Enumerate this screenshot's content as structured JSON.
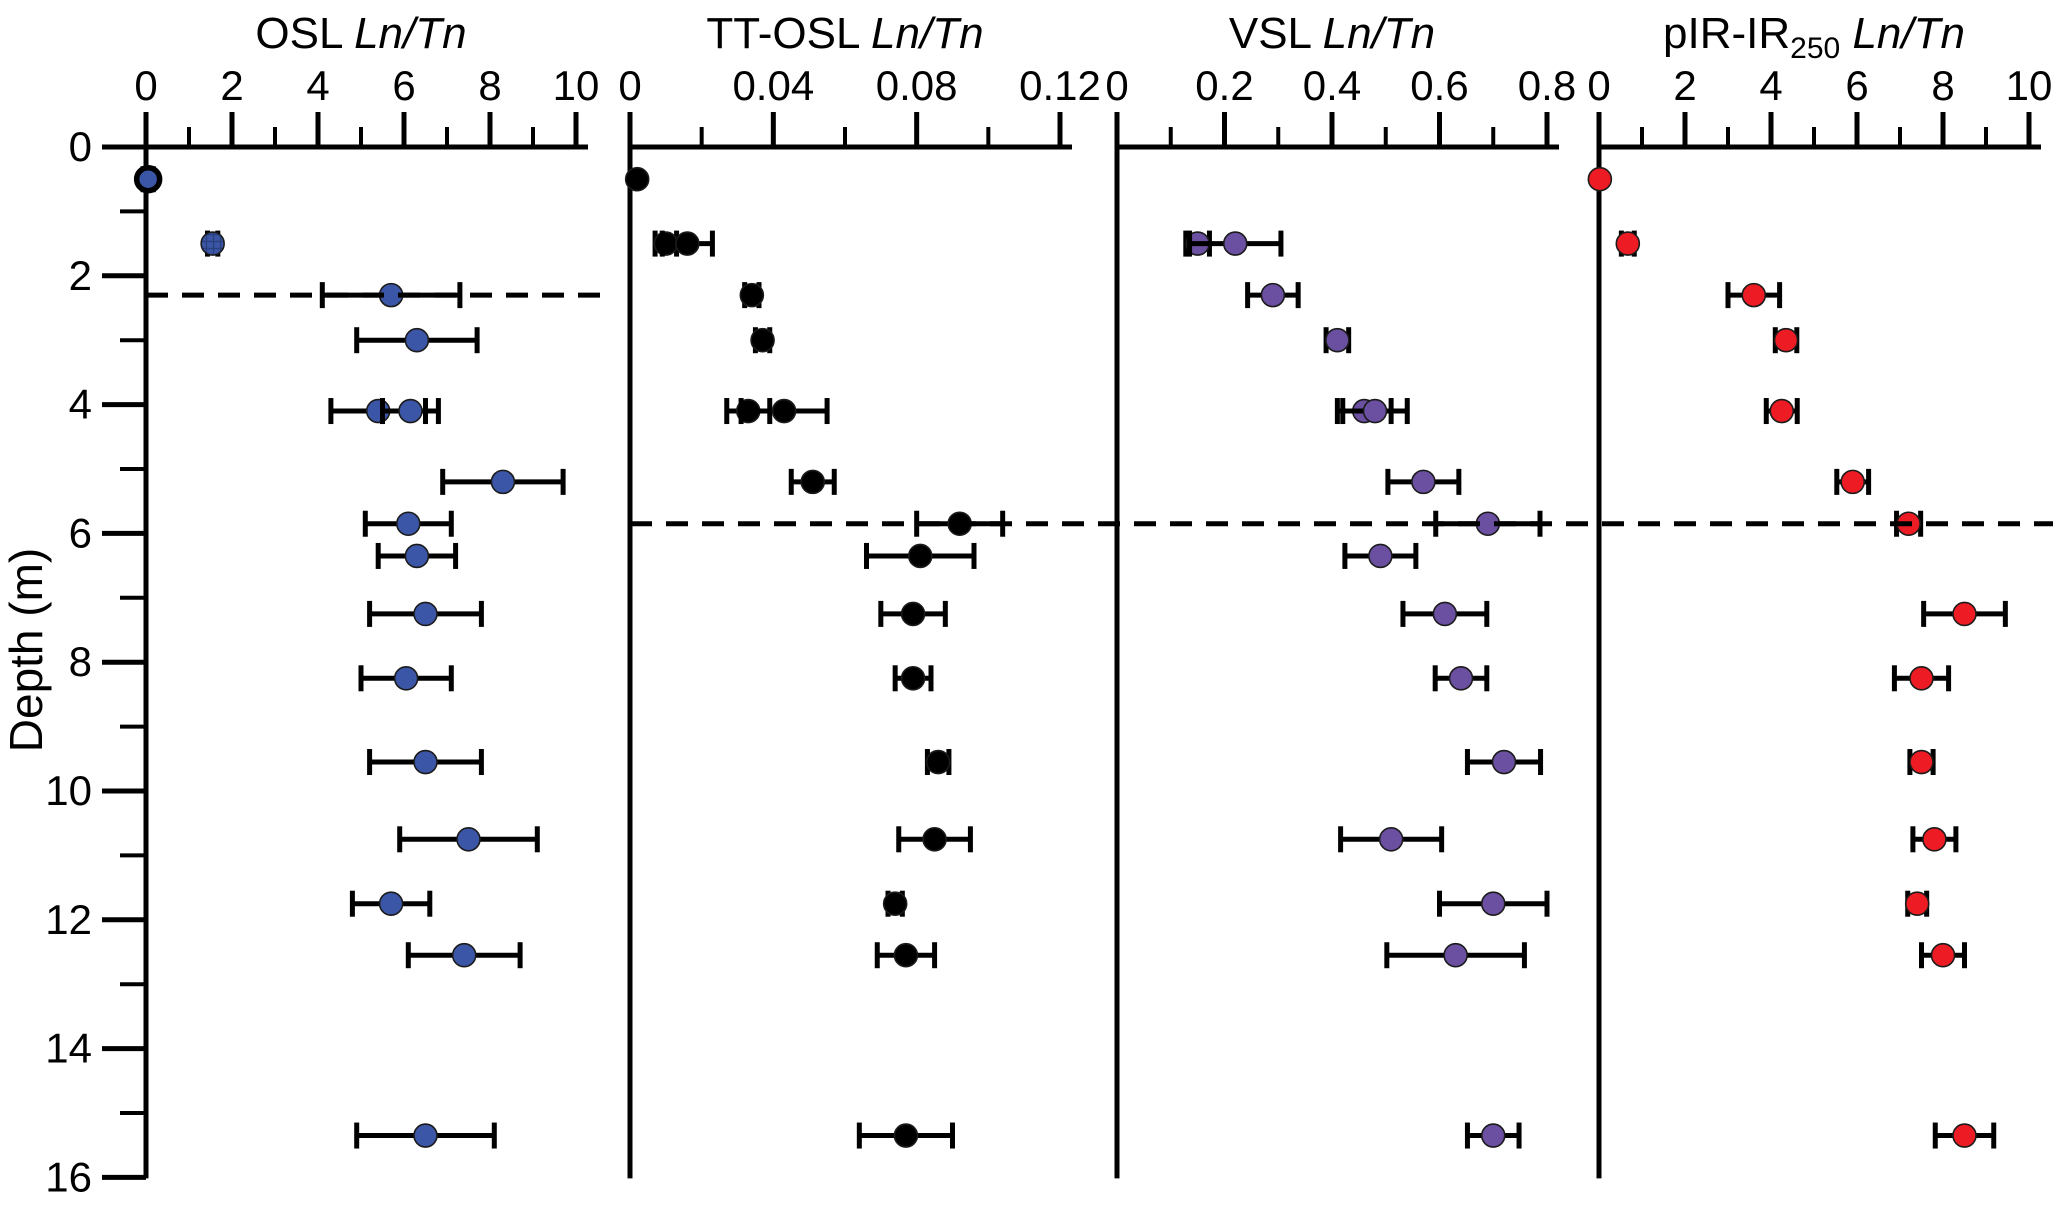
{
  "chart_data": {
    "type": "scatter",
    "description": "Four-panel luminescence signal depth profiles: Ln/Tn ratios versus depth with horizontal error bars",
    "ylabel": "Depth (m)",
    "ylim": [
      0,
      16
    ],
    "y_axis": {
      "major_ticks": [
        0,
        2,
        4,
        6,
        8,
        10,
        12,
        14,
        16
      ],
      "major_tick_labels": [
        "0",
        "2",
        "4",
        "6",
        "8",
        "10",
        "12",
        "14",
        "16"
      ],
      "minor_ticks": [
        1,
        3,
        5,
        7,
        9,
        11,
        13,
        15
      ]
    },
    "error_bar_color": "#000000",
    "background_color": "#ffffff",
    "dashed_lines": [
      {
        "depth": 2.3,
        "panels": [
          0,
          0
        ],
        "style": "dashed"
      },
      {
        "depth": 5.85,
        "panels": [
          1,
          3
        ],
        "style": "dashed"
      }
    ],
    "panels": [
      {
        "id": "osl",
        "title_prefix": "OSL",
        "title_sub": "",
        "title_italic": "Ln/Tn",
        "marker_color": "#3b56a6",
        "xlim": [
          0,
          10
        ],
        "major_ticks": [
          0,
          2,
          4,
          6,
          8,
          10
        ],
        "major_tick_labels": [
          "0",
          "2",
          "4",
          "6",
          "8",
          "10"
        ],
        "minor_ticks": [
          1,
          3,
          5,
          7,
          9
        ],
        "points": [
          {
            "d": 0.5,
            "v": 0.05,
            "e": 0.12,
            "ring": true
          },
          {
            "d": 1.5,
            "v": 1.55,
            "e": 0.12,
            "hatch": true
          },
          {
            "d": 2.3,
            "v": 5.7,
            "e": 1.6
          },
          {
            "d": 3.0,
            "v": 6.3,
            "e": 1.4
          },
          {
            "d": 4.1,
            "v": 5.4,
            "e": 1.1
          },
          {
            "d": 4.1,
            "v": 6.15,
            "e": 0.65
          },
          {
            "d": 5.2,
            "v": 8.3,
            "e": 1.4
          },
          {
            "d": 5.85,
            "v": 6.1,
            "e": 1.0
          },
          {
            "d": 6.35,
            "v": 6.3,
            "e": 0.9
          },
          {
            "d": 7.25,
            "v": 6.5,
            "e": 1.3
          },
          {
            "d": 8.25,
            "v": 6.05,
            "e": 1.05
          },
          {
            "d": 9.55,
            "v": 6.5,
            "e": 1.3
          },
          {
            "d": 10.75,
            "v": 7.5,
            "e": 1.6
          },
          {
            "d": 11.75,
            "v": 5.7,
            "e": 0.9
          },
          {
            "d": 12.55,
            "v": 7.4,
            "e": 1.3
          },
          {
            "d": 15.35,
            "v": 6.5,
            "e": 1.6
          }
        ]
      },
      {
        "id": "tt-osl",
        "title_prefix": "TT-OSL",
        "title_sub": "",
        "title_italic": "Ln/Tn",
        "marker_color": "#000000",
        "xlim": [
          0,
          0.12
        ],
        "major_ticks": [
          0,
          0.04,
          0.08,
          0.12
        ],
        "major_tick_labels": [
          "0",
          "0.04",
          "0.08",
          "0.12"
        ],
        "minor_ticks": [
          0.02,
          0.06,
          0.1
        ],
        "points": [
          {
            "d": 0.5,
            "v": 0.002,
            "e": 0
          },
          {
            "d": 1.5,
            "v": 0.01,
            "e": 0.003
          },
          {
            "d": 1.5,
            "v": 0.016,
            "e": 0.007
          },
          {
            "d": 2.3,
            "v": 0.034,
            "e": 0.002
          },
          {
            "d": 3.0,
            "v": 0.037,
            "e": 0.002
          },
          {
            "d": 4.1,
            "v": 0.033,
            "e": 0.006
          },
          {
            "d": 4.1,
            "v": 0.043,
            "e": 0.012
          },
          {
            "d": 5.2,
            "v": 0.051,
            "e": 0.006
          },
          {
            "d": 5.85,
            "v": 0.092,
            "e": 0.012
          },
          {
            "d": 6.35,
            "v": 0.081,
            "e": 0.015
          },
          {
            "d": 7.25,
            "v": 0.079,
            "e": 0.009
          },
          {
            "d": 8.25,
            "v": 0.079,
            "e": 0.005
          },
          {
            "d": 9.55,
            "v": 0.086,
            "e": 0.003
          },
          {
            "d": 10.75,
            "v": 0.085,
            "e": 0.01
          },
          {
            "d": 11.75,
            "v": 0.074,
            "e": 0.002
          },
          {
            "d": 12.55,
            "v": 0.077,
            "e": 0.008
          },
          {
            "d": 15.35,
            "v": 0.077,
            "e": 0.013
          }
        ]
      },
      {
        "id": "vsl",
        "title_prefix": "VSL",
        "title_sub": "",
        "title_italic": "Ln/Tn",
        "marker_color": "#6b4fa1",
        "xlim": [
          0,
          0.8
        ],
        "major_ticks": [
          0,
          0.2,
          0.4,
          0.6,
          0.8
        ],
        "major_tick_labels": [
          "0",
          "0.2",
          "0.4",
          "0.6",
          "0.8"
        ],
        "minor_ticks": [
          0.1,
          0.3,
          0.5,
          0.7
        ],
        "points": [
          {
            "d": 1.5,
            "v": 0.15,
            "e": 0.022
          },
          {
            "d": 1.5,
            "v": 0.22,
            "e": 0.085
          },
          {
            "d": 2.3,
            "v": 0.29,
            "e": 0.047
          },
          {
            "d": 3.0,
            "v": 0.41,
            "e": 0.021
          },
          {
            "d": 4.1,
            "v": 0.46,
            "e": 0.05
          },
          {
            "d": 4.1,
            "v": 0.48,
            "e": 0.06
          },
          {
            "d": 5.2,
            "v": 0.57,
            "e": 0.066
          },
          {
            "d": 5.85,
            "v": 0.69,
            "e": 0.097
          },
          {
            "d": 6.35,
            "v": 0.49,
            "e": 0.066
          },
          {
            "d": 7.25,
            "v": 0.61,
            "e": 0.078
          },
          {
            "d": 8.25,
            "v": 0.64,
            "e": 0.048
          },
          {
            "d": 9.55,
            "v": 0.72,
            "e": 0.068
          },
          {
            "d": 10.75,
            "v": 0.51,
            "e": 0.094
          },
          {
            "d": 11.75,
            "v": 0.7,
            "e": 0.1
          },
          {
            "d": 12.55,
            "v": 0.63,
            "e": 0.128
          },
          {
            "d": 15.35,
            "v": 0.7,
            "e": 0.048
          }
        ]
      },
      {
        "id": "pir-ir250",
        "title_prefix": "pIR-IR",
        "title_sub": "250",
        "title_italic": "Ln/Tn",
        "marker_color": "#ed1c24",
        "xlim": [
          0,
          10
        ],
        "major_ticks": [
          0,
          2,
          4,
          6,
          8,
          10
        ],
        "major_tick_labels": [
          "0",
          "2",
          "4",
          "6",
          "8",
          "10"
        ],
        "minor_ticks": [
          1,
          3,
          5,
          7,
          9
        ],
        "points": [
          {
            "d": 0.5,
            "v": 0.02,
            "e": 0
          },
          {
            "d": 1.5,
            "v": 0.67,
            "e": 0.15
          },
          {
            "d": 2.3,
            "v": 3.6,
            "e": 0.6
          },
          {
            "d": 3.0,
            "v": 4.35,
            "e": 0.25
          },
          {
            "d": 4.1,
            "v": 4.25,
            "e": 0.36
          },
          {
            "d": 5.2,
            "v": 5.9,
            "e": 0.37
          },
          {
            "d": 5.85,
            "v": 7.2,
            "e": 0.28
          },
          {
            "d": 7.25,
            "v": 8.5,
            "e": 0.95
          },
          {
            "d": 8.25,
            "v": 7.5,
            "e": 0.63
          },
          {
            "d": 9.55,
            "v": 7.5,
            "e": 0.27
          },
          {
            "d": 10.75,
            "v": 7.8,
            "e": 0.5
          },
          {
            "d": 11.75,
            "v": 7.4,
            "e": 0.22
          },
          {
            "d": 12.55,
            "v": 8.0,
            "e": 0.5
          },
          {
            "d": 15.35,
            "v": 8.5,
            "e": 0.68
          }
        ]
      }
    ]
  }
}
